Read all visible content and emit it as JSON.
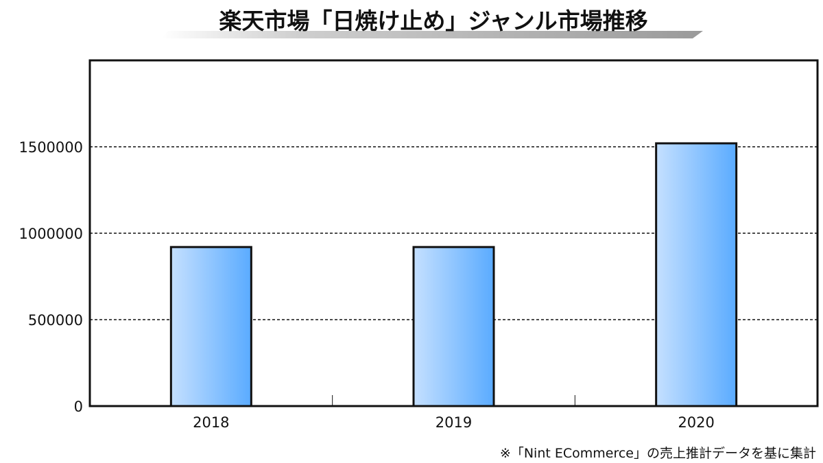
{
  "chart_data": {
    "type": "bar",
    "title": "楽天市場「日焼け止め」ジャンル市場推移",
    "xlabel": "",
    "ylabel": "",
    "categories": [
      "2018",
      "2019",
      "2020"
    ],
    "values": [
      920000,
      920000,
      1520000
    ],
    "ylim": [
      0,
      2000000
    ],
    "yticks": [
      0,
      500000,
      1000000,
      1500000
    ],
    "ytick_labels": [
      "0",
      "500000",
      "1000000",
      "1500000"
    ],
    "grid": "horizontal dashed",
    "legend": "none",
    "bar_color_light": "#c5e0ff",
    "bar_color_dark": "#5aabff",
    "bar_outline": "#111111"
  },
  "footnote": "※「Nint ECommerce」の売上推計データを基に集計"
}
